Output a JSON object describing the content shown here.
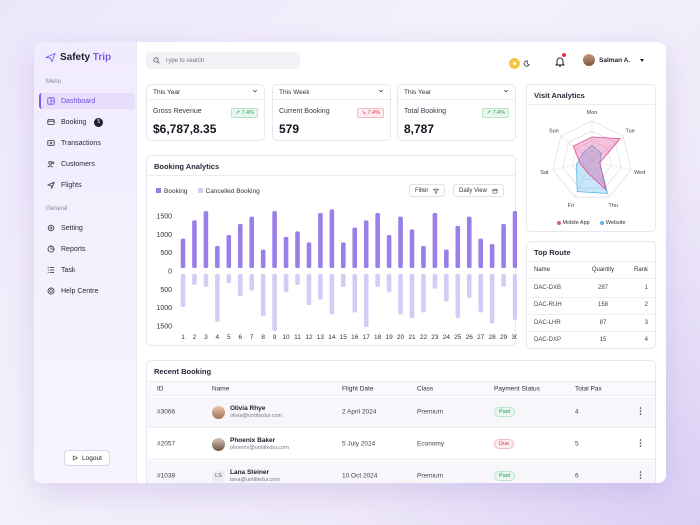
{
  "app": {
    "brand_main": "Safety",
    "brand_accent": "Trip",
    "accent_color": "#7b5cf0"
  },
  "sidebar": {
    "menu_label": "Menu",
    "general_label": "General",
    "items": [
      {
        "label": "Dashboard",
        "icon": "dashboard-icon",
        "active": true
      },
      {
        "label": "Booking",
        "icon": "booking-icon",
        "badge": "5"
      },
      {
        "label": "Transactions",
        "icon": "transactions-icon"
      },
      {
        "label": "Customers",
        "icon": "customers-icon"
      },
      {
        "label": "Flights",
        "icon": "plane-icon"
      }
    ],
    "general_items": [
      {
        "label": "Setting",
        "icon": "gear-icon"
      },
      {
        "label": "Reports",
        "icon": "reports-icon"
      },
      {
        "label": "Task",
        "icon": "task-icon"
      },
      {
        "label": "Help Centre",
        "icon": "help-icon"
      }
    ],
    "logout_label": "Logout"
  },
  "header": {
    "search_placeholder": "Type to search",
    "user_name": "Salman A."
  },
  "stats": [
    {
      "period": "This Year",
      "label": "Gross Revenue",
      "value": "$6,787,8.35",
      "delta": "7.4%",
      "trend": "up"
    },
    {
      "period": "This Week",
      "label": "Current Booking",
      "value": "579",
      "delta": "7.4%",
      "trend": "down"
    },
    {
      "period": "This Year",
      "label": "Total Booking",
      "value": "8,787",
      "delta": "7.4%",
      "trend": "up"
    }
  ],
  "analytics": {
    "title": "Booking Analytics",
    "filter_label": "Filter",
    "view_label": "Daily View",
    "chart_data": {
      "type": "bar",
      "categories": [
        "1",
        "2",
        "3",
        "4",
        "5",
        "6",
        "7",
        "8",
        "9",
        "10",
        "11",
        "12",
        "13",
        "14",
        "15",
        "16",
        "17",
        "18",
        "19",
        "20",
        "21",
        "22",
        "23",
        "24",
        "25",
        "26",
        "27",
        "28",
        "29",
        "30"
      ],
      "series": [
        {
          "name": "Booking",
          "color": "#9a7fe8",
          "values": [
            800,
            1300,
            1550,
            600,
            900,
            1200,
            1400,
            500,
            1550,
            850,
            1000,
            700,
            1500,
            1600,
            700,
            1100,
            1300,
            1500,
            900,
            1400,
            1050,
            600,
            1500,
            500,
            1150,
            1400,
            800,
            650,
            1200,
            1550
          ]
        },
        {
          "name": "Cancelled Booking",
          "color": "#d6cbf5",
          "values": [
            900,
            300,
            350,
            1300,
            250,
            600,
            450,
            1150,
            1550,
            500,
            300,
            850,
            700,
            1100,
            350,
            1050,
            1450,
            350,
            500,
            1100,
            1200,
            1050,
            400,
            750,
            1200,
            650,
            1050,
            1350,
            350,
            1250
          ]
        }
      ],
      "y_ticks_top": [
        "1500",
        "1000",
        "500",
        "0"
      ],
      "y_ticks_bottom": [
        "500",
        "1000",
        "1500"
      ],
      "ylim": [
        -1500,
        1500
      ]
    }
  },
  "visit": {
    "title": "Visit Analytics",
    "chart_data": {
      "type": "radar",
      "axes": [
        "Mon",
        "Tue",
        "Wed",
        "Thu",
        "Fri",
        "Sat",
        "Sun"
      ],
      "series": [
        {
          "name": "Mobile App",
          "color": "#e0509b",
          "values": [
            0.6,
            0.9,
            0.2,
            0.8,
            0.3,
            0.3,
            0.6
          ]
        },
        {
          "name": "Website",
          "color": "#5fb7ec",
          "values": [
            0.4,
            0.3,
            0.2,
            0.9,
            0.85,
            0.4,
            0.3
          ]
        }
      ]
    }
  },
  "route": {
    "title": "Top Route",
    "headers": [
      "Name",
      "Quantity",
      "Rank"
    ],
    "rows": [
      {
        "name": "DAC-DXB",
        "qty": "287",
        "rank": "1"
      },
      {
        "name": "DAC-RUH",
        "qty": "158",
        "rank": "2"
      },
      {
        "name": "DAC-LHR",
        "qty": "87",
        "rank": "3"
      },
      {
        "name": "DAC-DXP",
        "qty": "15",
        "rank": "4"
      }
    ]
  },
  "recent": {
    "title": "Recent Booking",
    "headers": [
      "ID",
      "Name",
      "Flight Date",
      "Class",
      "Payment Status",
      "Total Pax"
    ],
    "rows": [
      {
        "id": "#3066",
        "name": "Olivia Rhye",
        "email": "olivia@untitledui.com",
        "date": "2 April 2024",
        "class": "Premium",
        "status": "Paid",
        "pax": "4",
        "avatar": ""
      },
      {
        "id": "#2057",
        "name": "Phoenix Baker",
        "email": "phoenix@untitledui.com",
        "date": "5 July 2024",
        "class": "Economy",
        "status": "Due",
        "pax": "5",
        "avatar": ""
      },
      {
        "id": "#1038",
        "name": "Lana Steiner",
        "email": "lana@untitledui.com",
        "date": "10 Oct 2024",
        "class": "Premium",
        "status": "Paid",
        "pax": "6",
        "avatar": "LS"
      }
    ]
  }
}
